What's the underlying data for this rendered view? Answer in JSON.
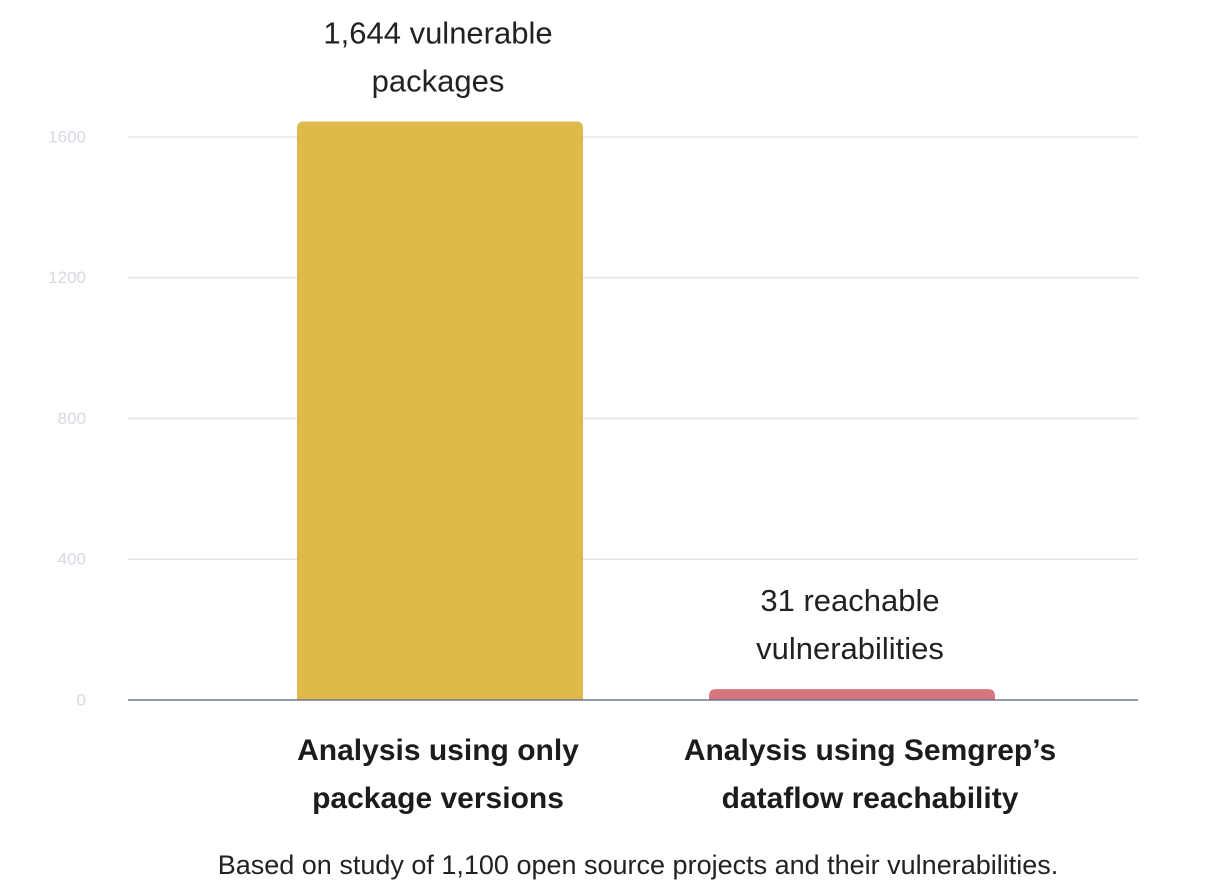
{
  "chart_data": {
    "type": "bar",
    "categories": [
      [
        "Analysis using only",
        "package versions"
      ],
      [
        "Analysis using Semgrep’s",
        "dataflow reachability"
      ]
    ],
    "values": [
      1644,
      31
    ],
    "bar_labels": [
      [
        "1,644 vulnerable",
        "packages"
      ],
      [
        "31 reachable",
        "vulnerabilities"
      ]
    ],
    "bar_colors": [
      "#e0b94b",
      "#d4767b"
    ],
    "yticks": [
      "0",
      "400",
      "800",
      "1200",
      "1600"
    ],
    "ylim": [
      0,
      1600
    ],
    "grid": true,
    "title": "",
    "xlabel": "",
    "ylabel": ""
  },
  "footnote": "Based on study of 1,100 open source projects and their vulnerabilities."
}
